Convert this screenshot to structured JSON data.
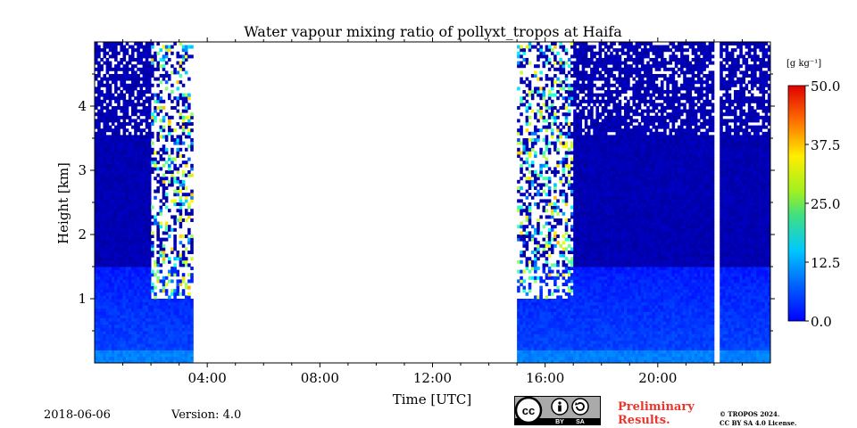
{
  "chart_data": {
    "type": "heatmap",
    "title": "Water vapour mixing ratio of pollyxt_tropos at Haifa",
    "xlabel": "Time [UTC]",
    "ylabel": "Height [km]",
    "x_range_hours": [
      0,
      24
    ],
    "x_ticks": [
      "04:00",
      "08:00",
      "12:00",
      "16:00",
      "20:00"
    ],
    "x_tick_hours": [
      4,
      8,
      12,
      16,
      20
    ],
    "y_range_km": [
      0,
      5
    ],
    "y_ticks": [
      "1",
      "2",
      "3",
      "4"
    ],
    "y_tick_values": [
      1,
      2,
      3,
      4
    ],
    "colorbar": {
      "unit_label": "[g kg⁻¹]",
      "range": [
        0,
        50
      ],
      "ticks": [
        "0.0",
        "12.5",
        "25.0",
        "37.5",
        "50.0"
      ],
      "tick_values": [
        0,
        12.5,
        25,
        37.5,
        50
      ],
      "colormap": "jet"
    },
    "data_periods_hours": [
      [
        0.0,
        3.5
      ],
      [
        15.0,
        22.0
      ],
      [
        22.2,
        24.0
      ]
    ],
    "no_data_periods_hours": [
      [
        3.5,
        15.0
      ],
      [
        22.0,
        22.2
      ]
    ],
    "profile_summary": {
      "lowest_layer_km": [
        0.0,
        0.2
      ],
      "lowest_layer_value": 12.5,
      "boundary_layer_km": [
        0.2,
        1.5
      ],
      "boundary_layer_value": 7.5,
      "free_troposphere_value": 2.5,
      "noisy_region_note": "scattered high values above 1 km near 02:00-03:30 and 15:00-17:00"
    }
  },
  "footer": {
    "date": "2018-06-06",
    "version": "Version: 4.0",
    "license_badge": "cc-by-sa-badge",
    "license_badge_left": "BY",
    "license_badge_right": "SA",
    "preliminary_line1": "Preliminary",
    "preliminary_line2": "Results.",
    "copyright_line1": "© TROPOS 2024.",
    "copyright_line2": "CC BY SA 4.0 License."
  },
  "colors": {
    "preliminary": "#e8372e",
    "badge_bg": "#aaaaaa",
    "badge_dark": "#000000"
  }
}
